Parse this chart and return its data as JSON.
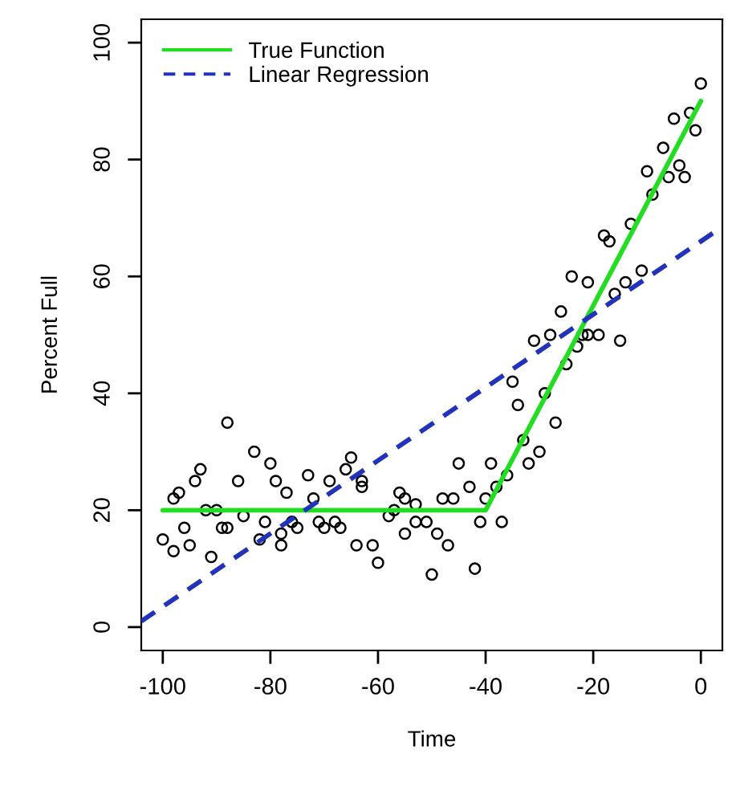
{
  "chart_data": {
    "type": "scatter",
    "xlabel": "Time",
    "ylabel": "Percent Full",
    "xlim": [
      -104,
      4
    ],
    "ylim": [
      -4,
      104
    ],
    "xticks": [
      -100,
      -80,
      -60,
      -40,
      -20,
      0
    ],
    "yticks": [
      0,
      20,
      40,
      60,
      80,
      100
    ],
    "legend": "top left",
    "series": [
      {
        "color": "#000000",
        "marker": "circle",
        "x": [
          -88,
          -83,
          -80,
          -93,
          -94,
          -86,
          -79,
          -73,
          -97,
          -77,
          -98,
          -92,
          -90,
          -85,
          -76,
          -96,
          -89,
          -88,
          -81,
          -82,
          -78,
          -75,
          -100,
          -95,
          -98,
          -91,
          -78,
          -65,
          -69,
          -66,
          -63,
          -63,
          -72,
          -71,
          -70,
          -68,
          -67,
          -64,
          -61,
          -60,
          -58,
          -57,
          -56,
          -55,
          -53,
          -55,
          -53,
          -51,
          -49,
          -47,
          -50,
          -48,
          -46,
          -45,
          -42,
          -43,
          -41,
          -39,
          -37,
          -40,
          -38,
          -36,
          -32,
          -30,
          -33,
          -27,
          -34,
          -29,
          -35,
          -25,
          -31,
          -28,
          -26,
          -22,
          -21,
          -19,
          -23,
          -15,
          -16,
          0,
          -2,
          -5,
          -1,
          -7,
          -10,
          -4,
          -6,
          -3,
          -9,
          -13,
          -18,
          -17,
          -11,
          -14,
          -24,
          -21
        ],
        "values": [
          35,
          30,
          28,
          27,
          25,
          25,
          25,
          26,
          23,
          23,
          22,
          20,
          20,
          19,
          18,
          17,
          17,
          17,
          18,
          15,
          16,
          17,
          15,
          14,
          13,
          12,
          14,
          29,
          25,
          27,
          25,
          24,
          22,
          18,
          17,
          18,
          17,
          14,
          14,
          11,
          19,
          20,
          23,
          22,
          21,
          16,
          18,
          18,
          16,
          14,
          9,
          22,
          22,
          28,
          10,
          24,
          18,
          28,
          18,
          22,
          24,
          26,
          28,
          30,
          32,
          35,
          38,
          40,
          42,
          45,
          49,
          50,
          54,
          50,
          50,
          50,
          48,
          49,
          57,
          93,
          88,
          87,
          85,
          82,
          78,
          79,
          77,
          77,
          74,
          69,
          67,
          66,
          61,
          59,
          60,
          59
        ]
      },
      {
        "type": "line",
        "name": "True Function",
        "color": "#22dd22",
        "line_style": "solid",
        "x": [
          -100,
          -40,
          0
        ],
        "values": [
          20,
          20,
          90
        ]
      },
      {
        "type": "line",
        "name": "Linear Regression",
        "color": "#2233bb",
        "line_style": "dashed",
        "x": [
          -104,
          4
        ],
        "values": [
          1,
          68.5
        ]
      }
    ]
  }
}
